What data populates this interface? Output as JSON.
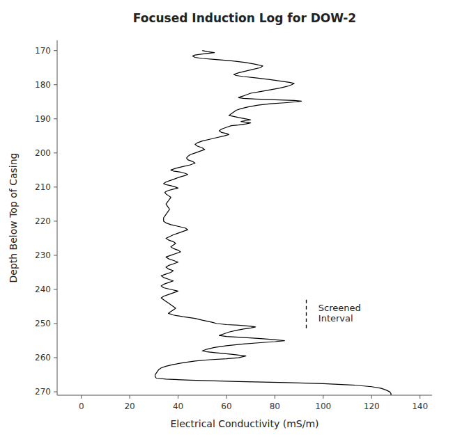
{
  "chart_data": {
    "type": "line",
    "title": "Focused Induction Log for DOW-2",
    "xlabel": "Electrical Conductivity (mS/m)",
    "ylabel": "Depth Below Top of Casing",
    "xlim": [
      -10,
      145
    ],
    "ylim": [
      271,
      167
    ],
    "xticks": [
      0,
      20,
      40,
      60,
      80,
      100,
      120,
      140
    ],
    "yticks": [
      170,
      180,
      190,
      200,
      210,
      220,
      230,
      240,
      250,
      260,
      270
    ],
    "grid": false,
    "color": "#000000",
    "screened_interval": {
      "x": 93,
      "y_top": 243,
      "y_bottom": 252
    },
    "annotation": {
      "text": "Screened\nInterval",
      "x": 98,
      "y": 247
    },
    "x": [
      50.0,
      52.0,
      55.0,
      50.0,
      47.0,
      46.0,
      47.0,
      50.0,
      55.0,
      62.0,
      68.0,
      72.0,
      75.0,
      74.0,
      71.0,
      68.0,
      65.0,
      63.0,
      64.0,
      67.0,
      72.0,
      78.0,
      83.0,
      86.0,
      88.0,
      87.0,
      85.0,
      82.0,
      78.0,
      74.0,
      70.0,
      68.0,
      67.0,
      66.0,
      65.0,
      67.0,
      72.0,
      80.0,
      88.0,
      91.0,
      89.0,
      84.0,
      78.0,
      73.0,
      69.0,
      66.0,
      64.0,
      63.0,
      62.0,
      61.0,
      63.0,
      65.0,
      68.0,
      70.0,
      68.0,
      66.0,
      68.0,
      70.0,
      68.0,
      65.0,
      62.0,
      60.0,
      58.0,
      57.0,
      58.0,
      60.0,
      61.0,
      59.0,
      56.0,
      53.0,
      50.0,
      48.0,
      47.0,
      48.0,
      50.0,
      51.0,
      49.0,
      47.0,
      45.0,
      44.0,
      43.5,
      44.0,
      46.0,
      47.0,
      45.0,
      42.0,
      39.0,
      37.0,
      38.0,
      41.0,
      43.0,
      44.0,
      43.0,
      41.0,
      39.0,
      37.0,
      35.0,
      34.0,
      35.0,
      37.0,
      39.0,
      40.0,
      38.0,
      36.0,
      35.0,
      34.5,
      35.0,
      36.0,
      37.0,
      36.5,
      36.0,
      35.5,
      35.0,
      35.5,
      36.0,
      36.5,
      36.0,
      35.5,
      35.0,
      34.5,
      34.0,
      34.0,
      34.0,
      35.0,
      37.0,
      40.0,
      43.0,
      44.0,
      42.0,
      40.0,
      38.0,
      36.5,
      35.0,
      36.0,
      38.0,
      39.0,
      38.0,
      37.0,
      38.0,
      40.0,
      41.0,
      39.0,
      37.0,
      35.0,
      36.0,
      38.0,
      40.0,
      38.0,
      36.0,
      35.0,
      36.0,
      38.0,
      37.0,
      35.0,
      33.0,
      34.0,
      36.0,
      38.0,
      36.0,
      34.0,
      33.0,
      34.0,
      37.0,
      40.0,
      38.0,
      36.0,
      34.0,
      33.0,
      34.0,
      35.0,
      36.0,
      37.0,
      38.0,
      39.0,
      38.0,
      37.0,
      36.0,
      38.0,
      42.0,
      47.0,
      50.0,
      52.0,
      54.0,
      56.0,
      60.0,
      65.0,
      70.0,
      72.0,
      70.0,
      67.0,
      64.0,
      61.0,
      59.0,
      57.0,
      60.0,
      65.0,
      72.0,
      78.0,
      84.0,
      80.0,
      74.0,
      67.0,
      60.0,
      55.0,
      52.0,
      50.0,
      52.0,
      56.0,
      62.0,
      68.0,
      65.0,
      60.0,
      53.0,
      47.0,
      42.0,
      38.0,
      35.0,
      33.0,
      32.0,
      31.5,
      31.0,
      30.5,
      30.5,
      31.0,
      35.0,
      45.0,
      65.0,
      85.0,
      100.0,
      112.0,
      120.0,
      124.0,
      126.0,
      127.5,
      128.0,
      128.0
    ],
    "values": [
      170.0,
      170.3,
      170.6,
      171.0,
      171.3,
      171.6,
      172.0,
      172.3,
      172.6,
      173.0,
      173.5,
      174.0,
      174.5,
      175.0,
      175.5,
      176.0,
      176.5,
      177.0,
      177.3,
      177.6,
      178.0,
      178.5,
      179.0,
      179.3,
      179.6,
      180.0,
      180.5,
      181.0,
      181.5,
      182.0,
      182.5,
      183.0,
      183.3,
      183.5,
      183.8,
      184.0,
      184.2,
      184.4,
      184.6,
      184.8,
      185.0,
      185.3,
      185.6,
      186.0,
      186.5,
      187.0,
      187.5,
      188.0,
      188.5,
      189.0,
      189.3,
      189.6,
      190.0,
      190.3,
      190.5,
      190.8,
      191.0,
      191.2,
      191.5,
      191.8,
      192.0,
      192.5,
      193.0,
      193.5,
      194.0,
      194.3,
      194.6,
      195.0,
      195.5,
      196.0,
      196.5,
      197.0,
      197.5,
      198.0,
      198.5,
      199.0,
      199.5,
      200.0,
      200.5,
      201.0,
      201.5,
      202.0,
      202.5,
      203.0,
      203.5,
      204.0,
      204.5,
      205.0,
      205.3,
      205.6,
      206.0,
      206.3,
      206.6,
      207.0,
      207.5,
      208.0,
      208.5,
      209.0,
      209.3,
      209.6,
      210.0,
      210.3,
      210.6,
      211.0,
      211.3,
      211.6,
      212.0,
      212.5,
      213.0,
      213.5,
      214.0,
      214.5,
      215.0,
      215.5,
      216.0,
      216.5,
      217.0,
      217.5,
      218.0,
      218.5,
      219.0,
      219.5,
      220.0,
      220.5,
      221.0,
      221.5,
      222.0,
      222.5,
      223.0,
      223.5,
      224.0,
      224.5,
      225.0,
      225.5,
      226.0,
      226.5,
      227.0,
      227.5,
      228.0,
      228.5,
      229.0,
      229.5,
      230.0,
      230.5,
      231.0,
      231.5,
      232.0,
      232.5,
      233.0,
      233.5,
      234.0,
      234.5,
      235.0,
      235.5,
      236.0,
      236.5,
      237.0,
      237.5,
      238.0,
      238.5,
      239.0,
      239.5,
      240.0,
      240.5,
      241.0,
      241.5,
      242.0,
      242.5,
      243.0,
      243.5,
      244.0,
      244.5,
      245.0,
      245.5,
      246.0,
      246.5,
      247.0,
      247.5,
      248.0,
      248.5,
      249.0,
      249.3,
      249.6,
      250.0,
      250.3,
      250.5,
      250.8,
      251.0,
      251.3,
      251.6,
      252.0,
      252.5,
      253.0,
      253.5,
      253.8,
      254.0,
      254.3,
      254.6,
      255.0,
      255.3,
      255.6,
      256.0,
      256.5,
      257.0,
      257.5,
      258.0,
      258.3,
      258.6,
      259.0,
      259.5,
      260.0,
      260.3,
      260.6,
      261.0,
      261.5,
      262.0,
      262.5,
      263.0,
      263.5,
      264.0,
      264.5,
      265.0,
      265.5,
      266.0,
      266.3,
      266.6,
      267.0,
      267.3,
      267.6,
      268.0,
      268.5,
      269.0,
      269.5,
      270.0,
      270.5,
      271.0
    ]
  }
}
